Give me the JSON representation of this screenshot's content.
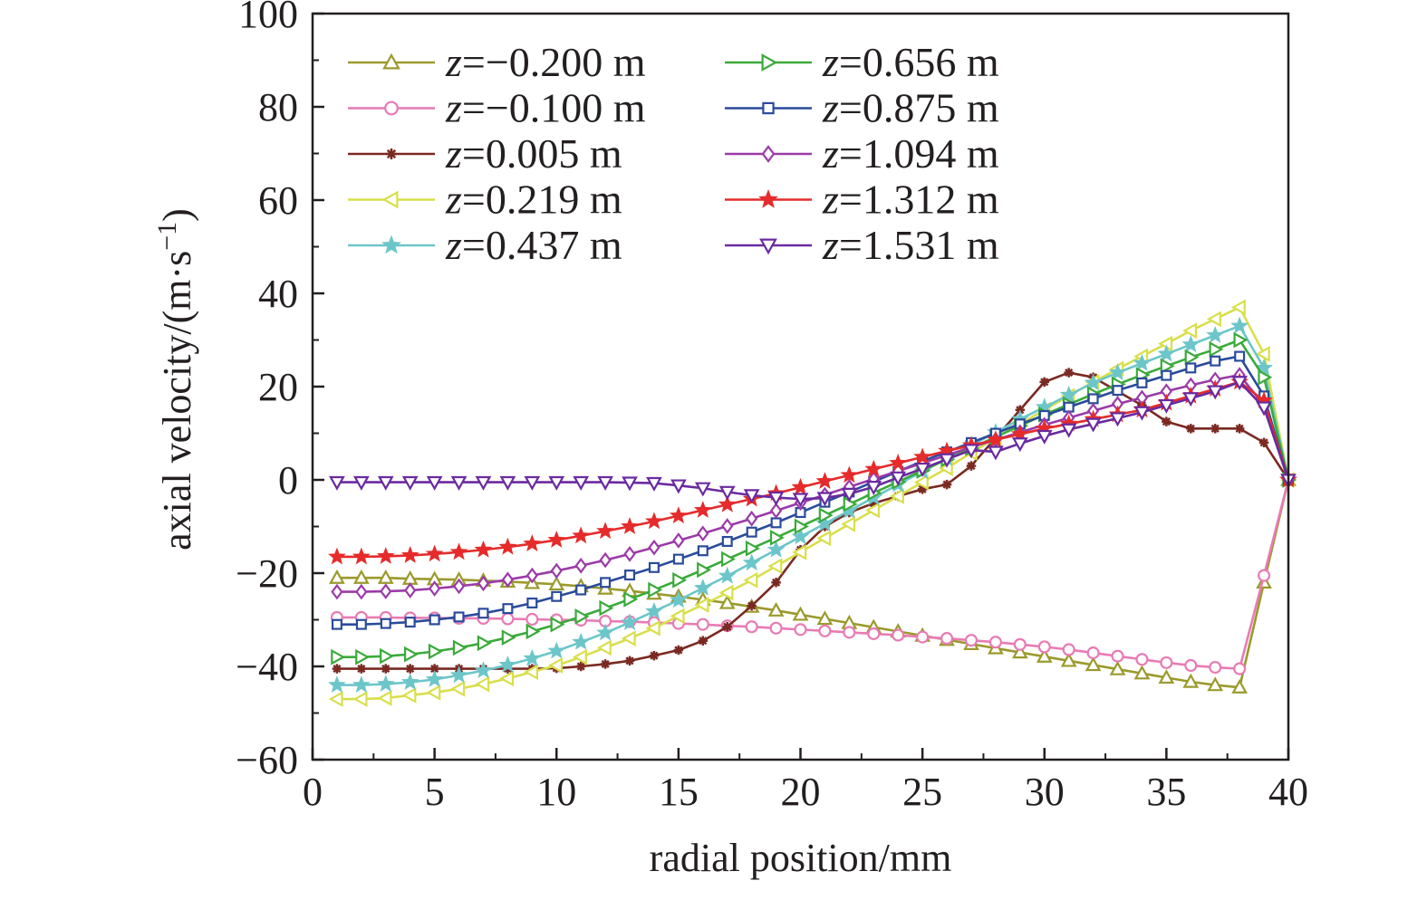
{
  "chart_data": {
    "type": "line",
    "xlabel": "radial position/mm",
    "ylabel": "axial velocity/(m·s",
    "ylabel_sup": "−1",
    "ylabel_close": ")",
    "xlim": [
      0,
      40
    ],
    "ylim": [
      -60,
      100
    ],
    "xticks": [
      "0",
      "5",
      "10",
      "15",
      "20",
      "25",
      "30",
      "35",
      "40"
    ],
    "yticks": [
      "−60",
      "−40",
      "−20",
      "0",
      "20",
      "40",
      "60",
      "80",
      "100"
    ],
    "grid": false,
    "legend_position": "top-left",
    "x": [
      1,
      2,
      3,
      4,
      5,
      6,
      7,
      8,
      9,
      10,
      11,
      12,
      13,
      14,
      15,
      16,
      17,
      18,
      19,
      20,
      21,
      22,
      23,
      24,
      25,
      26,
      27,
      28,
      29,
      30,
      31,
      32,
      33,
      34,
      35,
      36,
      37,
      38,
      39,
      40
    ],
    "series": [
      {
        "name": "z=−0.200 m",
        "var": "z",
        "label": "=−0.200 m",
        "color": "#9a9a2c",
        "marker": "triangle-up",
        "values": [
          -21,
          -21,
          -21,
          -21.2,
          -21.3,
          -21.4,
          -21.6,
          -21.8,
          -22.1,
          -22.4,
          -22.8,
          -23.3,
          -23.8,
          -24.4,
          -25,
          -25.7,
          -26.4,
          -27.2,
          -28,
          -28.9,
          -29.8,
          -30.7,
          -31.6,
          -32.5,
          -33.4,
          -34.3,
          -35.2,
          -36.1,
          -37,
          -37.9,
          -38.8,
          -39.7,
          -40.6,
          -41.5,
          -42.4,
          -43.3,
          -44,
          -44.5,
          -22,
          0
        ]
      },
      {
        "name": "z=−0.100 m",
        "var": "z",
        "label": "=−0.100 m",
        "color": "#e87bb4",
        "marker": "circle",
        "values": [
          -29.5,
          -29.5,
          -29.5,
          -29.6,
          -29.6,
          -29.7,
          -29.7,
          -29.8,
          -29.9,
          -30,
          -30.1,
          -30.3,
          -30.4,
          -30.6,
          -30.8,
          -31,
          -31.3,
          -31.5,
          -31.8,
          -32.1,
          -32.4,
          -32.7,
          -33,
          -33.3,
          -33.7,
          -34,
          -34.4,
          -34.8,
          -35.3,
          -35.8,
          -36.4,
          -37.1,
          -37.8,
          -38.5,
          -39.2,
          -39.8,
          -40.2,
          -40.5,
          -20.5,
          0
        ]
      },
      {
        "name": "z=0.005 m",
        "var": "z",
        "label": "=0.005 m",
        "color": "#7a2a22",
        "marker": "asterisk",
        "values": [
          -40.5,
          -40.5,
          -40.5,
          -40.5,
          -40.5,
          -40.5,
          -40.5,
          -40.5,
          -40.5,
          -40.4,
          -40,
          -39.5,
          -38.8,
          -37.7,
          -36.5,
          -34.5,
          -31.5,
          -27,
          -22,
          -15,
          -10,
          -7,
          -5,
          -3.5,
          -2,
          -1,
          3,
          9,
          15,
          21,
          23,
          22,
          19,
          16,
          12.5,
          11,
          11,
          11,
          8,
          0
        ]
      },
      {
        "name": "z=0.219 m",
        "var": "z",
        "label": "=0.219 m",
        "color": "#d9df4b",
        "marker": "triangle-left",
        "values": [
          -47,
          -47,
          -46.8,
          -46.2,
          -45.6,
          -44.8,
          -43.8,
          -42.6,
          -41.2,
          -39.8,
          -38,
          -36,
          -34,
          -31.8,
          -29.2,
          -26.8,
          -24.2,
          -21.5,
          -18.5,
          -15.5,
          -12.5,
          -9.5,
          -6.5,
          -3.5,
          -0.5,
          2.5,
          5.8,
          9,
          12,
          15,
          18,
          21,
          23.8,
          26.5,
          29.2,
          32,
          34.5,
          37,
          27,
          0
        ]
      },
      {
        "name": "z=0.437 m",
        "var": "z",
        "label": "=0.437 m",
        "color": "#6cc6c9",
        "marker": "star",
        "values": [
          -44,
          -44,
          -43.8,
          -43.4,
          -42.8,
          -41.9,
          -40.9,
          -39.7,
          -38.3,
          -36.7,
          -34.8,
          -32.8,
          -30.6,
          -28.2,
          -25.8,
          -23.2,
          -20.6,
          -17.8,
          -15,
          -12.2,
          -9.4,
          -6.6,
          -3.8,
          -1,
          1.8,
          4.6,
          7.4,
          10.2,
          13,
          15.6,
          18.2,
          20.8,
          23,
          25,
          27,
          29,
          31,
          33,
          24,
          0
        ]
      },
      {
        "name": "z=0.656 m",
        "var": "z",
        "label": "=0.656 m",
        "color": "#3aaa3a",
        "marker": "triangle-right",
        "values": [
          -38,
          -38,
          -37.8,
          -37.4,
          -36.8,
          -36,
          -35,
          -33.8,
          -32.5,
          -31,
          -29.3,
          -27.5,
          -25.6,
          -23.6,
          -21.5,
          -19.3,
          -17,
          -14.7,
          -12.4,
          -10,
          -7.6,
          -5.2,
          -2.8,
          -0.4,
          2,
          4.4,
          6.8,
          9.2,
          11.6,
          14,
          16.2,
          18.4,
          20.5,
          22.5,
          24.4,
          26.3,
          28,
          30,
          22,
          0
        ]
      },
      {
        "name": "z=0.875 m",
        "var": "z",
        "label": "=0.875 m",
        "color": "#2a4b9b",
        "marker": "square",
        "values": [
          -31,
          -31,
          -30.8,
          -30.5,
          -30,
          -29.4,
          -28.6,
          -27.6,
          -26.4,
          -25,
          -23.6,
          -22,
          -20.4,
          -18.8,
          -17,
          -15.2,
          -13.2,
          -11.2,
          -9.2,
          -7,
          -4.8,
          -2.6,
          -0.4,
          1.8,
          4,
          6,
          8,
          10,
          12,
          13.8,
          15.6,
          17.4,
          19.2,
          20.8,
          22.4,
          24,
          25.5,
          26.5,
          18,
          0
        ]
      },
      {
        "name": "z=1.094 m",
        "var": "z",
        "label": "=1.094 m",
        "color": "#9b3aa8",
        "marker": "diamond",
        "values": [
          -24,
          -24,
          -23.9,
          -23.7,
          -23.3,
          -22.8,
          -22.2,
          -21.4,
          -20.5,
          -19.5,
          -18.4,
          -17.2,
          -15.9,
          -14.5,
          -13,
          -11.5,
          -9.9,
          -8.3,
          -6.6,
          -4.9,
          -3.2,
          -1.5,
          0.2,
          1.9,
          3.6,
          5.3,
          7,
          8.6,
          10.2,
          11.8,
          13.3,
          14.8,
          16.3,
          17.6,
          19,
          20.3,
          21.5,
          22.5,
          16,
          0
        ]
      },
      {
        "name": "z=1.312 m",
        "var": "z",
        "label": "=1.312 m",
        "color": "#e52b2b",
        "marker": "star",
        "values": [
          -16.5,
          -16.5,
          -16.4,
          -16.2,
          -15.9,
          -15.5,
          -15,
          -14.4,
          -13.7,
          -12.9,
          -12,
          -11,
          -10,
          -8.9,
          -7.7,
          -6.5,
          -5.3,
          -4.1,
          -2.9,
          -1.6,
          -0.3,
          1,
          2.3,
          3.6,
          4.9,
          6.2,
          7.4,
          8.6,
          9.8,
          11,
          12,
          13,
          14,
          15,
          16.5,
          18,
          19.5,
          21,
          17,
          0
        ]
      },
      {
        "name": "z=1.531 m",
        "var": "z",
        "label": "=1.531 m",
        "color": "#6a2aa0",
        "marker": "triangle-down",
        "values": [
          -0.5,
          -0.5,
          -0.5,
          -0.5,
          -0.5,
          -0.5,
          -0.5,
          -0.5,
          -0.5,
          -0.5,
          -0.5,
          -0.5,
          -0.6,
          -0.7,
          -1.2,
          -1.8,
          -2.6,
          -3.3,
          -3.8,
          -4.1,
          -3.9,
          -3,
          -1.5,
          0.5,
          2.4,
          4.4,
          6.4,
          6,
          7.8,
          9.4,
          10.8,
          12,
          13.2,
          14.5,
          16,
          17.5,
          19,
          21,
          15.5,
          0
        ]
      }
    ]
  }
}
